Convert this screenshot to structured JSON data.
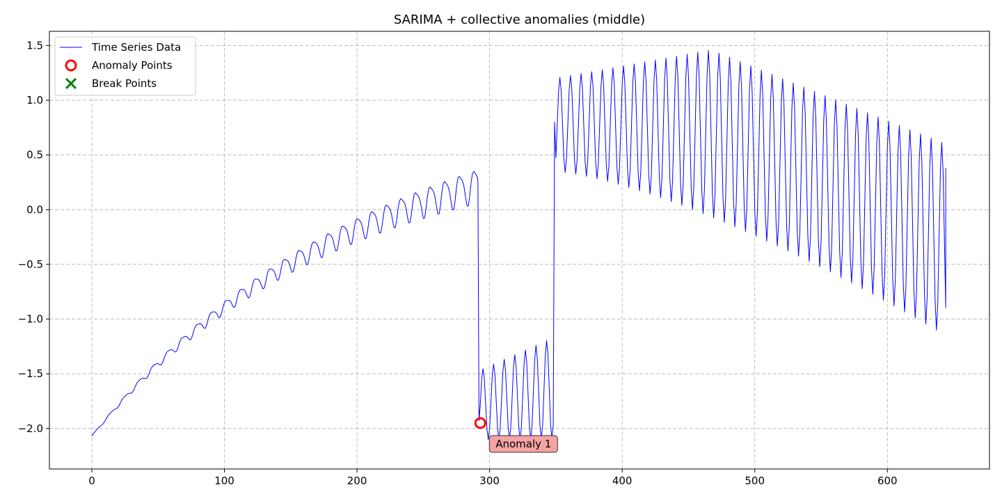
{
  "chart_data": {
    "type": "line",
    "title": "SARIMA + collective anomalies (middle)",
    "xlabel": "",
    "ylabel": "",
    "xlim": [
      -32,
      677
    ],
    "ylim": [
      -2.37,
      1.63
    ],
    "xticks": [
      0,
      100,
      200,
      300,
      400,
      500,
      600
    ],
    "yticks": [
      -2.0,
      -1.5,
      -1.0,
      -0.5,
      0.0,
      0.5,
      1.0,
      1.5
    ],
    "xtick_labels": [
      "0",
      "100",
      "200",
      "300",
      "400",
      "500",
      "600"
    ],
    "ytick_labels": [
      "−2.0",
      "−1.5",
      "−1.0",
      "−0.5",
      "0.0",
      "0.5",
      "1.0",
      "1.5"
    ],
    "grid": true,
    "legend_position": "top-left",
    "legend": [
      {
        "label": "Time Series Data",
        "kind": "line",
        "color": "#0000ff"
      },
      {
        "label": "Anomaly Points",
        "kind": "circle",
        "color": "#ff0000"
      },
      {
        "label": "Break Points",
        "kind": "x",
        "color": "#008000"
      }
    ],
    "series": [
      {
        "name": "Time Series Data",
        "color": "#0000ff",
        "segments": [
          {
            "x_start": 0,
            "x_end": 291,
            "model": "a*(1-exp(-t/tau)) + amp*sin(2*pi*t/period)",
            "y0": -2.07,
            "a": 3.0,
            "tau": 200,
            "period": 11,
            "amp_start": 0.005,
            "amp_end": 0.15
          },
          {
            "x_start": 292,
            "x_end": 348,
            "model": "oscillation",
            "y_min_start": -2.1,
            "y_max_start": -1.47,
            "y_max_end": -1.17,
            "period": 8
          },
          {
            "x_start": 349,
            "x_end": 644,
            "model": "oscillation",
            "y_max_start": 1.2,
            "y_max_peak": 1.46,
            "y_max_end": 0.6,
            "y_min_start": 0.35,
            "y_min_end": -1.15,
            "period": 8,
            "y_end": 0.38
          }
        ]
      }
    ],
    "anomaly_points": [
      {
        "x": 293,
        "y": -1.95
      }
    ],
    "break_points": [],
    "annotations": [
      {
        "text": "Anomaly 1",
        "x": 293,
        "y": -1.95
      }
    ]
  }
}
